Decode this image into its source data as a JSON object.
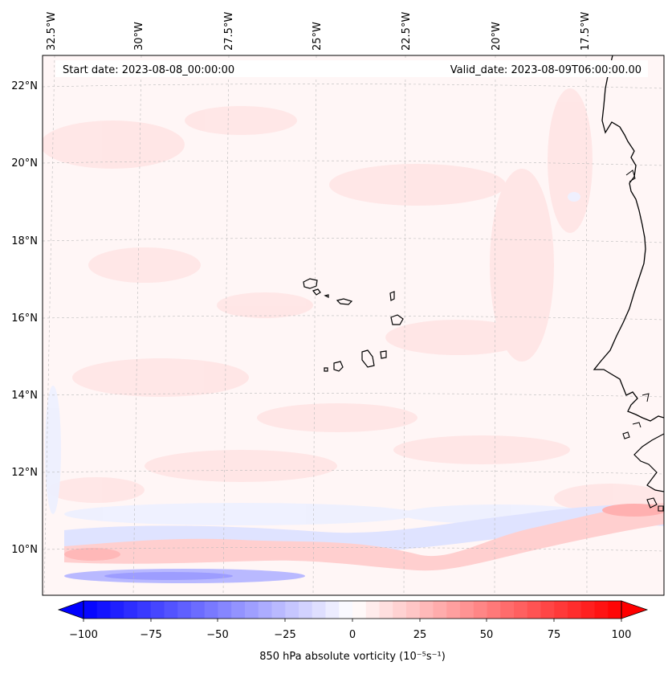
{
  "map": {
    "start_date": "Start date: 2023-08-08_00:00:00",
    "valid_date": "Valid_date: 2023-08-09T06:00:00.00",
    "lon_labels": [
      "32.5°W",
      "30°W",
      "27.5°W",
      "25°W",
      "22.5°W",
      "20°W",
      "17.5°W"
    ],
    "lat_labels": [
      "22°N",
      "20°N",
      "18°N",
      "16°N",
      "14°N",
      "12°N",
      "10°N"
    ],
    "region": "Cabo Verde and West African coast",
    "colors": {
      "positive": "#ff0000",
      "negative": "#0000ff",
      "neutral": "#ffffff",
      "coastline": "#000000"
    }
  },
  "colorbar": {
    "label": "850 hPa absolute vorticity (10⁻⁵s⁻¹)",
    "ticks": [
      "−100",
      "−75",
      "−50",
      "−25",
      "0",
      "25",
      "50",
      "75",
      "100"
    ],
    "min": -100,
    "max": 100,
    "step": 5
  }
}
